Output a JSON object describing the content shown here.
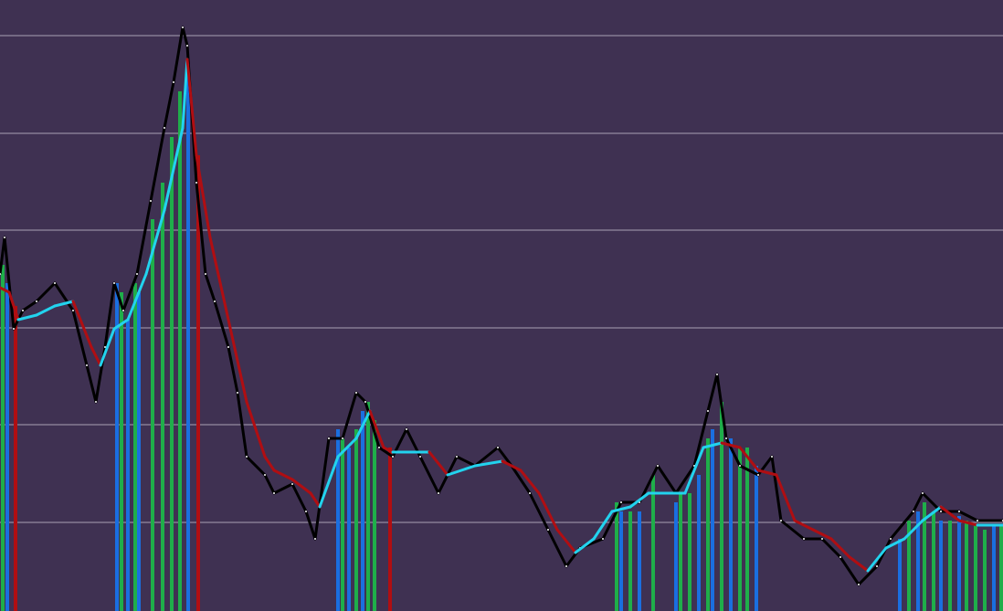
{
  "chart_data": {
    "type": "price",
    "background": "#3f3152",
    "grid": true,
    "grid_color": "#a9a1b4",
    "xlim": [
      0,
      1098
    ],
    "ylim": [
      0,
      669
    ],
    "yticks": [
      97,
      204,
      310,
      417,
      523,
      630
    ],
    "series": [
      {
        "kind": "price",
        "color": "#000000",
        "x": [
          0,
          5,
          15,
          25,
          40,
          60,
          80,
          95,
          105,
          115,
          125,
          135,
          150,
          165,
          180,
          190,
          200,
          205,
          215,
          225,
          235,
          250,
          260,
          270,
          290,
          300,
          320,
          335,
          345,
          360,
          375,
          390,
          400,
          415,
          430,
          445,
          460,
          480,
          500,
          520,
          545,
          560,
          580,
          600,
          620,
          635,
          660,
          680,
          700,
          720,
          740,
          760,
          775,
          785,
          795,
          810,
          830,
          845,
          855,
          880,
          900,
          920,
          940,
          960,
          975,
          1000,
          1010,
          1030,
          1050,
          1070,
          1098
        ],
        "values": [
          369,
          409,
          309,
          329,
          339,
          359,
          329,
          269,
          229,
          289,
          359,
          329,
          369,
          449,
          529,
          579,
          639,
          619,
          469,
          369,
          339,
          289,
          239,
          169,
          149,
          129,
          139,
          109,
          79,
          189,
          189,
          239,
          229,
          179,
          169,
          199,
          169,
          129,
          169,
          159,
          179,
          159,
          129,
          89,
          49,
          69,
          79,
          119,
          119,
          159,
          129,
          159,
          219,
          259,
          189,
          159,
          149,
          169,
          99,
          79,
          79,
          59,
          29,
          49,
          79,
          109,
          129,
          109,
          109,
          99,
          99
        ]
      },
      {
        "kind": "average",
        "up_color": "#22d3ee",
        "down_color": "#b00e12",
        "x": [
          0,
          10,
          20,
          40,
          60,
          80,
          100,
          110,
          125,
          140,
          160,
          180,
          200,
          205,
          215,
          230,
          250,
          270,
          290,
          300,
          320,
          340,
          350,
          370,
          390,
          405,
          420,
          430,
          450,
          470,
          490,
          520,
          550,
          570,
          590,
          610,
          630,
          650,
          670,
          690,
          710,
          730,
          750,
          770,
          790,
          810,
          830,
          850,
          870,
          890,
          910,
          930,
          950,
          970,
          990,
          1010,
          1030,
          1050,
          1070,
          1098
        ],
        "values": [
          354,
          349,
          319,
          324,
          334,
          339,
          289,
          269,
          309,
          319,
          369,
          439,
          529,
          604,
          499,
          409,
          319,
          229,
          169,
          154,
          144,
          129,
          114,
          169,
          189,
          219,
          179,
          174,
          174,
          174,
          149,
          159,
          164,
          154,
          129,
          89,
          64,
          79,
          109,
          114,
          129,
          129,
          129,
          179,
          184,
          179,
          154,
          149,
          99,
          89,
          79,
          59,
          44,
          69,
          79,
          99,
          114,
          99,
          94,
          94
        ]
      },
      {
        "kind": "bars",
        "color": "#1fae4a",
        "x": [
          3,
          133,
          148,
          167,
          178,
          188,
          197,
          375,
          390,
          403,
          410,
          675,
          690,
          715,
          745,
          755,
          775,
          790,
          810,
          818,
          995,
          1012,
          1022,
          1040,
          1058,
          1068,
          1078,
          1096
        ],
        "values": [
          379,
          349,
          359,
          429,
          469,
          519,
          569,
          189,
          199,
          229,
          209,
          119,
          109,
          149,
          129,
          129,
          189,
          229,
          179,
          179,
          99,
          119,
          109,
          99,
          99,
          94,
          89,
          94
        ]
      },
      {
        "kind": "bars",
        "color": "#1a6fe0",
        "x": [
          8,
          128,
          140,
          152,
          206,
          370,
          382,
          397,
          680,
          700,
          740,
          765,
          780,
          800,
          828,
          985,
          1005,
          1030,
          1050,
          1088
        ],
        "values": [
          359,
          359,
          319,
          349,
          599,
          199,
          179,
          219,
          109,
          109,
          119,
          149,
          199,
          189,
          159,
          79,
          109,
          99,
          104,
          94
        ]
      },
      {
        "kind": "bars",
        "color": "#b00e12",
        "x": [
          17,
          217,
          427
        ],
        "values": [
          334,
          499,
          179
        ]
      }
    ]
  }
}
